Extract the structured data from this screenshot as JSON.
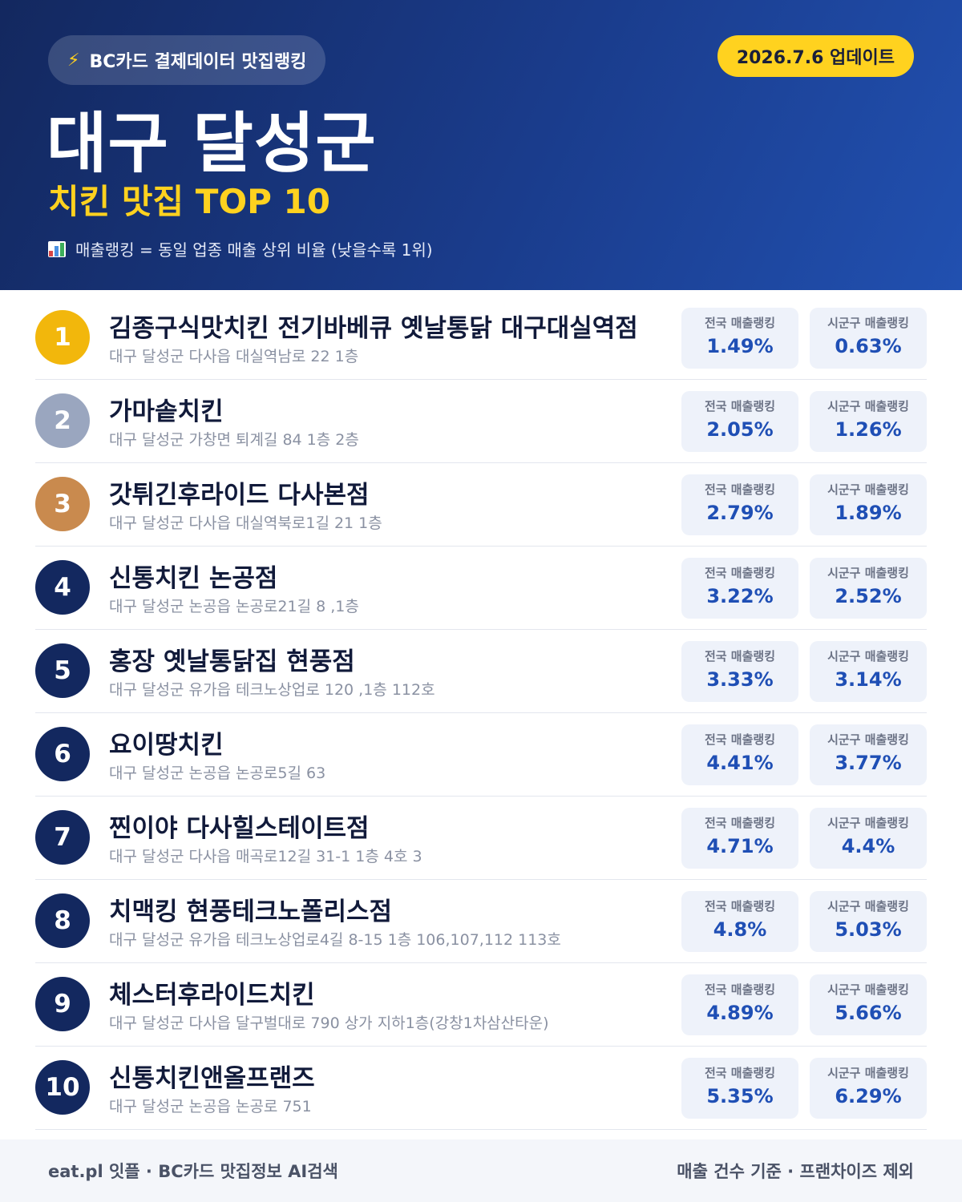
{
  "header": {
    "source_label": "BC카드 결제데이터 맛집랭킹",
    "update_label": "2026.7.6 업데이트",
    "region_title": "대구 달성군",
    "category_title": "치킨 맛집 TOP 10",
    "legend_note": "매출랭킹 = 동일 업종 매출 상위 비율 (낮을수록 1위)",
    "icons": [
      "lightning-bolt-icon",
      "bar-chart-icon"
    ]
  },
  "stat_labels": {
    "national": "전국 매출랭킹",
    "local": "시군구 매출랭킹"
  },
  "colors": {
    "header_bg": "#1a3c8c",
    "accent_yellow": "#ffd21f",
    "rank_gold": "#f2b70c",
    "rank_silver": "#9aa6bf",
    "rank_bronze": "#c98a4e",
    "rank_default": "#13285f",
    "stat_value": "#1f4fb5"
  },
  "restaurants": [
    {
      "rank": "1",
      "name": "김종구식맛치킨 전기바베큐 옛날통닭 대구대실역점",
      "address": "대구 달성군 다사읍 대실역남로 22 1층",
      "national": "1.49%",
      "local": "0.63%"
    },
    {
      "rank": "2",
      "name": "가마솥치킨",
      "address": "대구 달성군 가창면 퇴계길 84 1층 2층",
      "national": "2.05%",
      "local": "1.26%"
    },
    {
      "rank": "3",
      "name": "갓튀긴후라이드 다사본점",
      "address": "대구 달성군 다사읍 대실역북로1길 21 1층",
      "national": "2.79%",
      "local": "1.89%"
    },
    {
      "rank": "4",
      "name": "신통치킨 논공점",
      "address": "대구 달성군 논공읍 논공로21길 8 ,1층",
      "national": "3.22%",
      "local": "2.52%"
    },
    {
      "rank": "5",
      "name": "홍장 옛날통닭집 현풍점",
      "address": "대구 달성군 유가읍 테크노상업로 120 ,1층 112호",
      "national": "3.33%",
      "local": "3.14%"
    },
    {
      "rank": "6",
      "name": "요이땅치킨",
      "address": "대구 달성군 논공읍 논공로5길 63",
      "national": "4.41%",
      "local": "3.77%"
    },
    {
      "rank": "7",
      "name": "찐이야 다사힐스테이트점",
      "address": "대구 달성군 다사읍 매곡로12길 31-1 1층 4호 3",
      "national": "4.71%",
      "local": "4.4%"
    },
    {
      "rank": "8",
      "name": "치맥킹 현풍테크노폴리스점",
      "address": "대구 달성군 유가읍 테크노상업로4길 8-15 1층 106,107,112 113호",
      "national": "4.8%",
      "local": "5.03%"
    },
    {
      "rank": "9",
      "name": "체스터후라이드치킨",
      "address": "대구 달성군 다사읍 달구벌대로 790 상가 지하1층(강창1차삼산타운)",
      "national": "4.89%",
      "local": "5.66%"
    },
    {
      "rank": "10",
      "name": "신통치킨앤올프랜즈",
      "address": "대구 달성군 논공읍 논공로 751",
      "national": "5.35%",
      "local": "6.29%"
    }
  ],
  "footer": {
    "left": "eat.pl 잇플 · BC카드 맛집정보 AI검색",
    "right": "매출 건수 기준 · 프랜차이즈 제외"
  }
}
